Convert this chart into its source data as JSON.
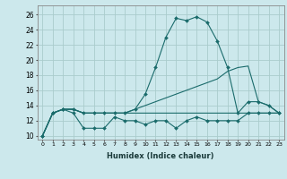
{
  "title": "",
  "xlabel": "Humidex (Indice chaleur)",
  "xlim": [
    -0.5,
    23.5
  ],
  "ylim": [
    9.5,
    27.2
  ],
  "xticks": [
    0,
    1,
    2,
    3,
    4,
    5,
    6,
    7,
    8,
    9,
    10,
    11,
    12,
    13,
    14,
    15,
    16,
    17,
    18,
    19,
    20,
    21,
    22,
    23
  ],
  "yticks": [
    10,
    12,
    14,
    16,
    18,
    20,
    22,
    24,
    26
  ],
  "bg_color": "#cce8ec",
  "grid_color": "#aacccc",
  "line_color": "#1a6b6b",
  "series": [
    {
      "x": [
        0,
        1,
        2,
        3,
        4,
        5,
        6,
        7,
        8,
        9,
        10,
        11,
        12,
        13,
        14,
        15,
        16,
        17,
        18,
        19,
        20,
        21,
        22,
        23
      ],
      "y": [
        10,
        13,
        13.5,
        13,
        11,
        11,
        11,
        12.5,
        12,
        12,
        11.5,
        12,
        12,
        11,
        12,
        12.5,
        12,
        12,
        12,
        12,
        13,
        13,
        13,
        13
      ],
      "marker": "D",
      "ms": 2.0,
      "lw": 0.8
    },
    {
      "x": [
        0,
        1,
        2,
        3,
        4,
        5,
        6,
        7,
        8,
        9,
        10,
        11,
        12,
        13,
        14,
        15,
        16,
        17,
        18,
        19,
        20,
        21,
        22,
        23
      ],
      "y": [
        10,
        13,
        13.5,
        13.5,
        13,
        13,
        13,
        13,
        13,
        13,
        13,
        13,
        13,
        13,
        13,
        13,
        13,
        13,
        13,
        13,
        13,
        13,
        13,
        13
      ],
      "marker": null,
      "ms": 0,
      "lw": 0.8
    },
    {
      "x": [
        0,
        1,
        2,
        3,
        4,
        5,
        6,
        7,
        8,
        9,
        10,
        11,
        12,
        13,
        14,
        15,
        16,
        17,
        18,
        19,
        20,
        21,
        22,
        23
      ],
      "y": [
        10,
        13,
        13.5,
        13.5,
        13,
        13,
        13,
        13,
        13,
        13.5,
        15.5,
        19,
        23,
        25.5,
        25.2,
        25.7,
        25.0,
        22.5,
        19.0,
        13.0,
        14.5,
        14.5,
        14.0,
        13.0
      ],
      "marker": "D",
      "ms": 2.0,
      "lw": 0.8
    },
    {
      "x": [
        0,
        1,
        2,
        3,
        4,
        5,
        6,
        7,
        8,
        9,
        10,
        11,
        12,
        13,
        14,
        15,
        16,
        17,
        18,
        19,
        20,
        21,
        22,
        23
      ],
      "y": [
        10,
        13,
        13.5,
        13.5,
        13,
        13,
        13,
        13,
        13,
        13.5,
        14,
        14.5,
        15,
        15.5,
        16,
        16.5,
        17,
        17.5,
        18.5,
        19.0,
        19.2,
        14.5,
        14.0,
        13.0
      ],
      "marker": null,
      "ms": 0,
      "lw": 0.8
    }
  ]
}
